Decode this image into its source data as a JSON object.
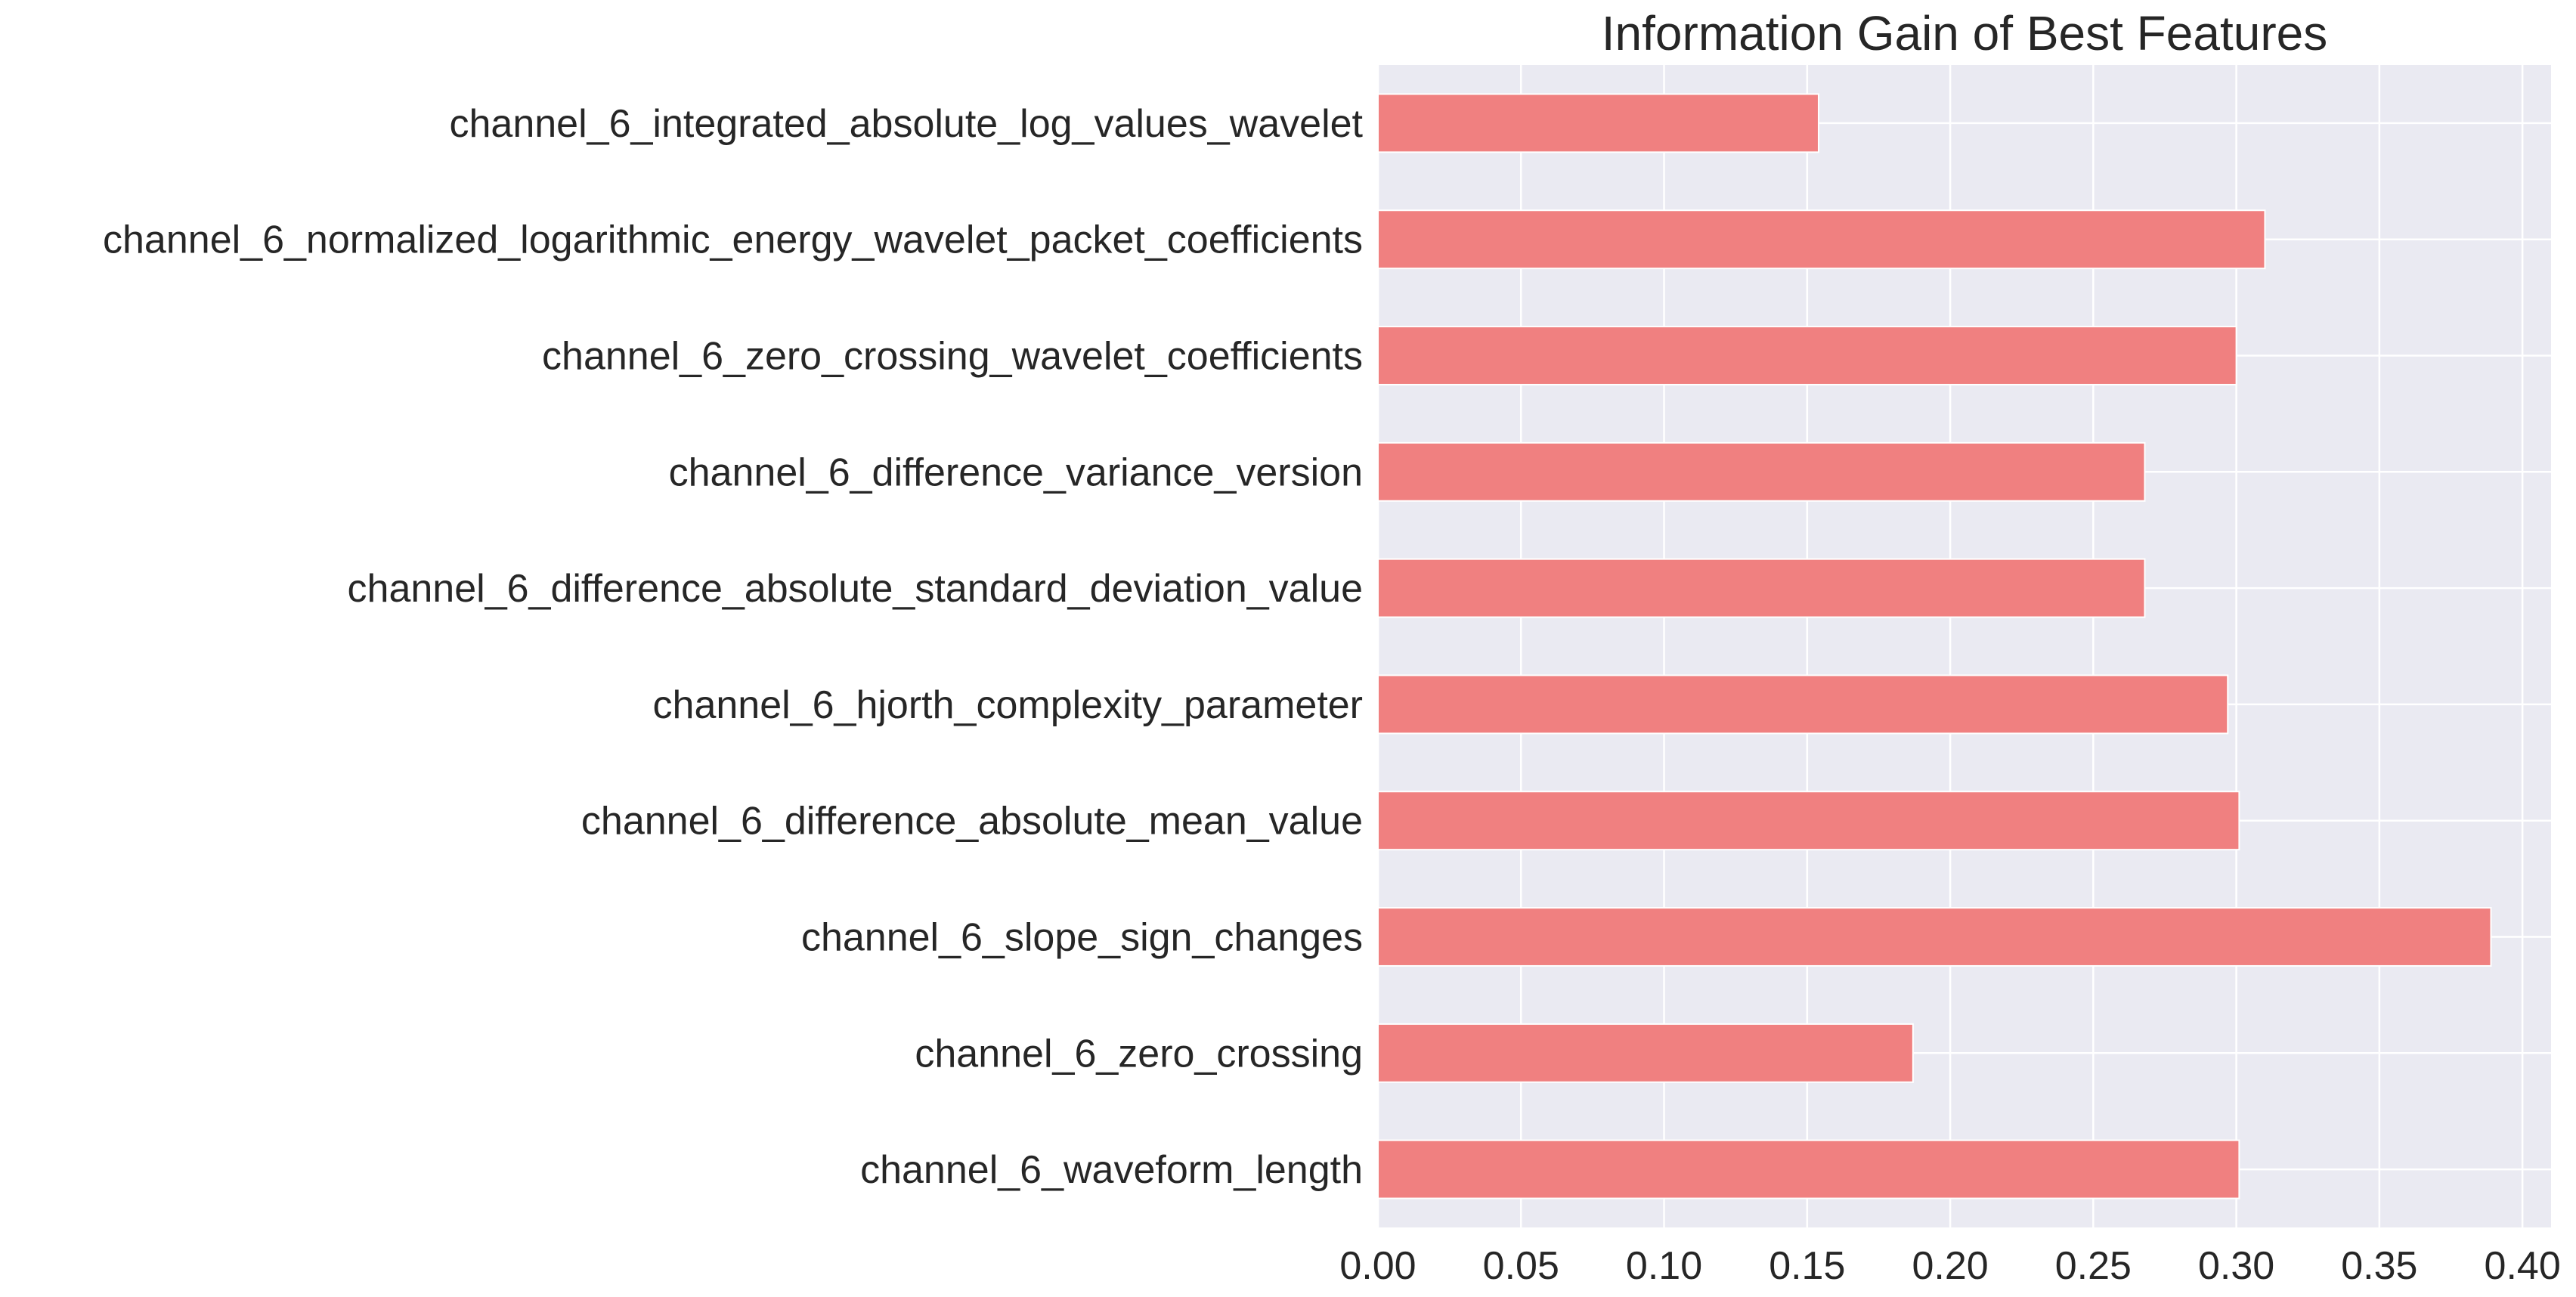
{
  "chart_data": {
    "type": "bar",
    "orientation": "horizontal",
    "title": "Information Gain of Best Features",
    "xlabel": "",
    "ylabel": "",
    "categories": [
      "channel_6_waveform_length",
      "channel_6_zero_crossing",
      "channel_6_slope_sign_changes",
      "channel_6_difference_absolute_mean_value",
      "channel_6_hjorth_complexity_parameter",
      "channel_6_difference_absolute_standard_deviation_value",
      "channel_6_difference_variance_version",
      "channel_6_zero_crossing_wavelet_coefficients",
      "channel_6_normalized_logarithmic_energy_wavelet_packet_coefficients",
      "channel_6_integrated_absolute_log_values_wavelet"
    ],
    "values": [
      0.301,
      0.187,
      0.389,
      0.301,
      0.297,
      0.268,
      0.268,
      0.3,
      0.31,
      0.154
    ],
    "xlim": [
      0.0,
      0.41
    ],
    "xticks": [
      "0.00",
      "0.05",
      "0.10",
      "0.15",
      "0.20",
      "0.25",
      "0.30",
      "0.35",
      "0.40"
    ],
    "grid": true,
    "bar_color": "#f08080",
    "background_color": "#eaeaf2"
  }
}
